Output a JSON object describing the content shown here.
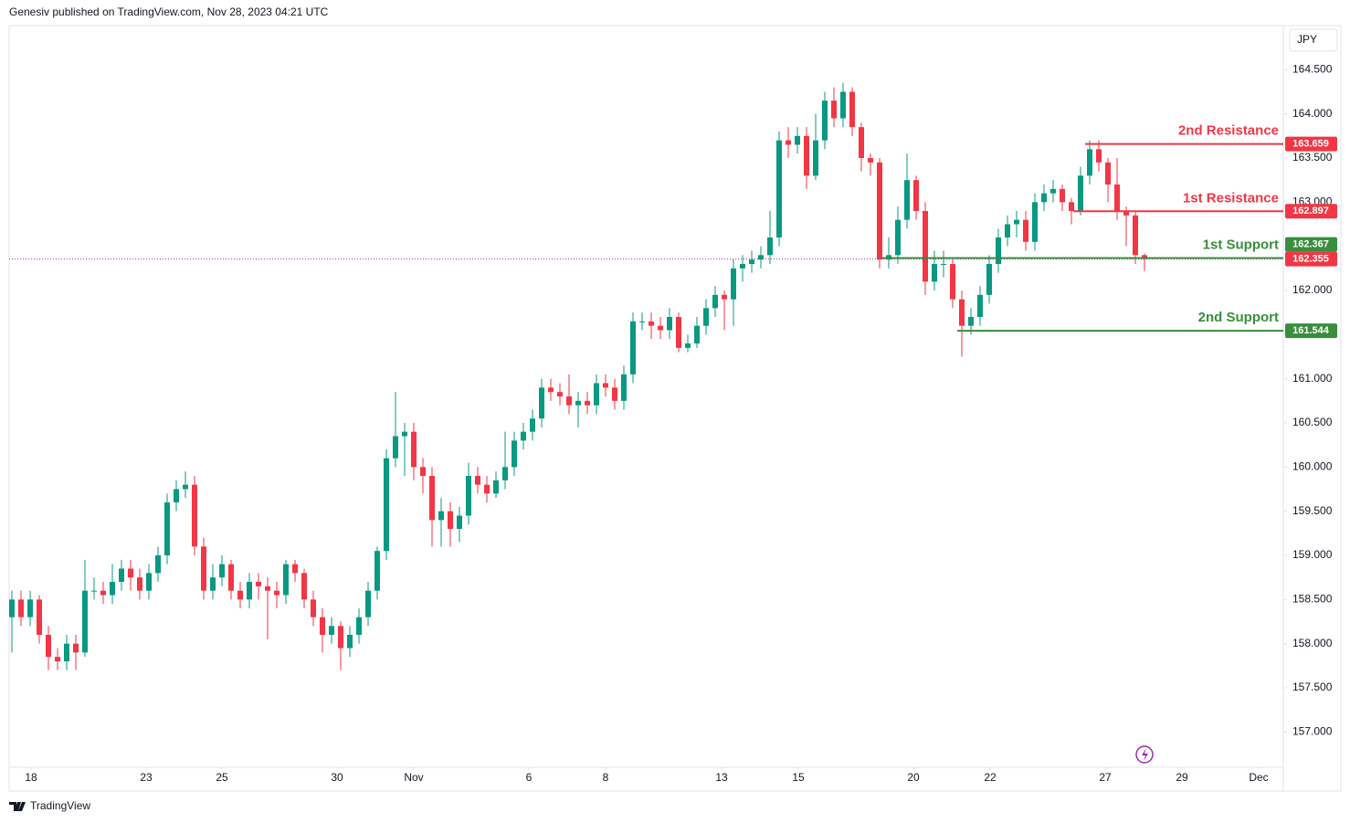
{
  "header": {
    "publisher": "Genesiv published on TradingView.com, Nov 28, 2023 04:21 UTC"
  },
  "footer": {
    "brand": "TradingView"
  },
  "chart_data": {
    "type": "candlestick",
    "currency": "JPY",
    "up_color": "#089981",
    "down_color": "#f23645",
    "grid": false,
    "xlim": [
      -0.3,
      139.2
    ],
    "ylim": [
      156.6,
      165.0
    ],
    "xticks": [
      {
        "value": 2.1,
        "label": "18"
      },
      {
        "value": 14.7,
        "label": "23"
      },
      {
        "value": 23,
        "label": "25"
      },
      {
        "value": 35.6,
        "label": "30"
      },
      {
        "value": 44,
        "label": "Nov"
      },
      {
        "value": 56.6,
        "label": "6"
      },
      {
        "value": 65,
        "label": "8"
      },
      {
        "value": 77.7,
        "label": "13"
      },
      {
        "value": 86.1,
        "label": "15"
      },
      {
        "value": 98.7,
        "label": "20"
      },
      {
        "value": 107.1,
        "label": "22"
      },
      {
        "value": 119.7,
        "label": "27"
      },
      {
        "value": 128.1,
        "label": "29"
      },
      {
        "value": 136.5,
        "label": "Dec"
      }
    ],
    "yticks": [
      {
        "value": 157.0,
        "label": "157.000"
      },
      {
        "value": 157.5,
        "label": "157.500"
      },
      {
        "value": 158.0,
        "label": "158.000"
      },
      {
        "value": 158.5,
        "label": "158.500"
      },
      {
        "value": 159.0,
        "label": "159.000"
      },
      {
        "value": 159.5,
        "label": "159.500"
      },
      {
        "value": 160.0,
        "label": "160.000"
      },
      {
        "value": 160.5,
        "label": "160.500"
      },
      {
        "value": 161.0,
        "label": "161.000"
      },
      {
        "value": 161.5,
        "label": "161.500"
      },
      {
        "value": 162.0,
        "label": "162.000"
      },
      {
        "value": 162.5,
        "label": "162.500"
      },
      {
        "value": 163.0,
        "label": "163.000"
      },
      {
        "value": 163.5,
        "label": "163.500"
      },
      {
        "value": 164.0,
        "label": "164.000"
      },
      {
        "value": 164.5,
        "label": "164.500"
      }
    ],
    "open": [
      158.3,
      158.5,
      158.3,
      158.5,
      158.1,
      157.85,
      157.8,
      158.0,
      157.9,
      158.6,
      158.6,
      158.55,
      158.7,
      158.85,
      158.75,
      158.6,
      158.8,
      159.0,
      159.6,
      159.75,
      159.8,
      159.1,
      158.6,
      158.75,
      158.9,
      158.6,
      158.5,
      158.7,
      158.65,
      158.6,
      158.55,
      158.9,
      158.8,
      158.5,
      158.3,
      158.1,
      158.2,
      157.95,
      158.1,
      158.3,
      158.6,
      159.05,
      160.1,
      160.35,
      160.4,
      160.0,
      159.9,
      159.4,
      159.5,
      159.3,
      159.45,
      159.9,
      159.8,
      159.7,
      159.85,
      160.0,
      160.3,
      160.4,
      160.55,
      160.9,
      160.85,
      160.8,
      160.7,
      160.75,
      160.7,
      160.95,
      160.9,
      160.75,
      161.05,
      161.65,
      161.65,
      161.6,
      161.55,
      161.7,
      161.35,
      161.4,
      161.6,
      161.8,
      161.95,
      161.9,
      162.25,
      162.3,
      162.35,
      162.4,
      162.6,
      163.7,
      163.65,
      163.75,
      163.3,
      163.7,
      164.15,
      163.95,
      164.25,
      163.85,
      163.5,
      163.45,
      162.35,
      162.4,
      162.8,
      163.25,
      162.9,
      162.1,
      162.3,
      162.3,
      161.9,
      161.6,
      161.7,
      161.95,
      162.3,
      162.6,
      162.75,
      162.8,
      162.55,
      163.0,
      163.1,
      163.15,
      163.0,
      162.9,
      163.3,
      163.6,
      163.45,
      163.2,
      162.9,
      162.85,
      162.4
    ],
    "high": [
      158.6,
      158.6,
      158.6,
      158.55,
      158.2,
      157.95,
      158.1,
      158.1,
      158.95,
      158.75,
      158.7,
      158.9,
      158.95,
      158.95,
      158.85,
      158.9,
      159.1,
      159.7,
      159.85,
      159.95,
      159.9,
      159.2,
      158.9,
      159.0,
      158.95,
      158.7,
      158.8,
      158.8,
      158.75,
      158.7,
      158.95,
      158.95,
      158.85,
      158.6,
      158.4,
      158.3,
      158.25,
      158.2,
      158.4,
      158.7,
      159.1,
      160.2,
      160.85,
      160.5,
      160.5,
      160.1,
      160.0,
      159.65,
      159.6,
      159.55,
      160.05,
      160.0,
      159.9,
      159.95,
      160.4,
      160.4,
      160.5,
      160.65,
      161.0,
      161.0,
      160.95,
      161.05,
      160.85,
      160.85,
      161.05,
      161.05,
      161.0,
      161.15,
      161.75,
      161.75,
      161.75,
      161.7,
      161.8,
      161.75,
      161.5,
      161.7,
      161.9,
      162.05,
      162.0,
      162.35,
      162.4,
      162.45,
      162.5,
      162.9,
      163.8,
      163.85,
      163.85,
      163.85,
      164.0,
      164.25,
      164.3,
      164.35,
      164.3,
      163.9,
      163.55,
      163.5,
      162.6,
      162.95,
      163.55,
      163.3,
      163.0,
      162.45,
      162.45,
      162.35,
      162.0,
      161.8,
      162.05,
      162.4,
      162.7,
      162.85,
      162.9,
      162.9,
      163.1,
      163.2,
      163.25,
      163.2,
      163.05,
      163.4,
      163.7,
      163.7,
      163.5,
      163.5,
      162.95,
      162.9,
      162.42
    ],
    "low": [
      157.9,
      158.2,
      158.2,
      158.0,
      157.7,
      157.7,
      157.7,
      157.7,
      157.85,
      158.5,
      158.45,
      158.45,
      158.6,
      158.6,
      158.5,
      158.5,
      158.7,
      158.9,
      159.5,
      159.65,
      159.0,
      158.5,
      158.5,
      158.65,
      158.5,
      158.4,
      158.4,
      158.5,
      158.05,
      158.4,
      158.45,
      158.7,
      158.4,
      158.2,
      157.9,
      158.0,
      157.7,
      157.85,
      158.0,
      158.2,
      158.5,
      158.95,
      160.0,
      159.9,
      159.85,
      159.7,
      159.1,
      159.1,
      159.1,
      159.15,
      159.35,
      159.7,
      159.6,
      159.65,
      159.75,
      159.9,
      160.2,
      160.3,
      160.45,
      160.75,
      160.7,
      160.6,
      160.45,
      160.6,
      160.6,
      160.8,
      160.65,
      160.65,
      160.95,
      161.55,
      161.45,
      161.45,
      161.45,
      161.3,
      161.3,
      161.35,
      161.5,
      161.7,
      161.55,
      161.6,
      162.1,
      162.2,
      162.25,
      162.3,
      162.5,
      163.5,
      163.55,
      163.15,
      163.25,
      163.6,
      163.85,
      163.85,
      163.75,
      163.35,
      163.3,
      162.25,
      162.25,
      162.3,
      162.7,
      162.8,
      161.95,
      162.0,
      162.15,
      161.8,
      161.25,
      161.5,
      161.6,
      161.85,
      162.2,
      162.5,
      162.6,
      162.45,
      162.45,
      162.9,
      163.0,
      162.9,
      162.75,
      162.85,
      163.2,
      163.35,
      163.0,
      162.8,
      162.5,
      162.3,
      162.22
    ],
    "close": [
      158.5,
      158.3,
      158.5,
      158.1,
      157.85,
      157.8,
      158.0,
      157.9,
      158.6,
      158.6,
      158.55,
      158.7,
      158.85,
      158.75,
      158.6,
      158.8,
      159.0,
      159.6,
      159.75,
      159.8,
      159.1,
      158.6,
      158.75,
      158.9,
      158.6,
      158.5,
      158.7,
      158.65,
      158.6,
      158.55,
      158.9,
      158.8,
      158.5,
      158.3,
      158.1,
      158.2,
      157.95,
      158.1,
      158.3,
      158.6,
      159.05,
      160.1,
      160.35,
      160.4,
      160.0,
      159.9,
      159.4,
      159.5,
      159.3,
      159.45,
      159.9,
      159.8,
      159.7,
      159.85,
      160.0,
      160.3,
      160.4,
      160.55,
      160.9,
      160.85,
      160.8,
      160.7,
      160.75,
      160.7,
      160.95,
      160.9,
      160.75,
      161.05,
      161.65,
      161.65,
      161.6,
      161.55,
      161.7,
      161.35,
      161.4,
      161.6,
      161.8,
      161.95,
      161.9,
      162.25,
      162.3,
      162.35,
      162.4,
      162.6,
      163.7,
      163.65,
      163.75,
      163.3,
      163.7,
      164.15,
      163.95,
      164.25,
      163.85,
      163.5,
      163.45,
      162.35,
      162.4,
      162.8,
      163.25,
      162.9,
      162.1,
      162.3,
      162.3,
      161.9,
      161.6,
      161.7,
      161.95,
      162.3,
      162.6,
      162.75,
      162.8,
      162.55,
      163.0,
      163.1,
      163.15,
      163.0,
      162.9,
      163.3,
      163.6,
      163.45,
      163.2,
      162.9,
      162.85,
      162.4,
      162.355
    ],
    "last_price": {
      "value": 162.355,
      "label": "162.355",
      "color": "#f23645",
      "line_color": "#9c27b0"
    },
    "levels": [
      {
        "name": "2nd Resistance",
        "value": 163.659,
        "label": "163.659",
        "x_start": 117.5,
        "color": "#f23645"
      },
      {
        "name": "1st Resistance",
        "value": 162.897,
        "label": "162.897",
        "x_start": 116.2,
        "color": "#f23645"
      },
      {
        "name": "1st Support",
        "value": 162.367,
        "label": "162.367",
        "x_start": 95.3,
        "color": "#388e3c"
      },
      {
        "name": "2nd Support",
        "value": 161.544,
        "label": "161.544",
        "x_start": 103.5,
        "color": "#388e3c"
      }
    ]
  }
}
